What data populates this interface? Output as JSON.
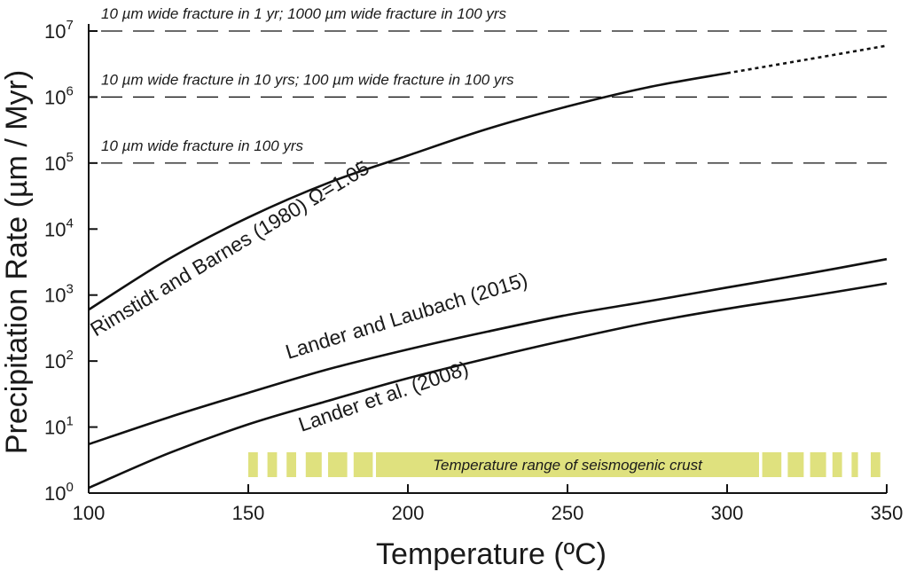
{
  "chart_data": {
    "type": "line",
    "title": "",
    "xlabel": "Temperature (ºC)",
    "ylabel": "Precipitation Rate (µm / Myr)",
    "xlim": [
      100,
      350
    ],
    "ylim_log10": [
      0,
      7
    ],
    "y_scale": "log",
    "x_ticks": [
      100,
      150,
      200,
      250,
      300,
      350
    ],
    "x_tick_labels": [
      "100",
      "150",
      "200",
      "250",
      "300",
      "350"
    ],
    "y_tick_exponents": [
      0,
      1,
      2,
      3,
      4,
      5,
      6,
      7
    ],
    "y_tick_base": "10",
    "y_tick_exponent_labels": [
      "0",
      "1",
      "2",
      "3",
      "4",
      "5",
      "6",
      "7"
    ],
    "reference_lines": [
      {
        "label": "10 µm wide fracture in 1 yr; 1000 µm wide fracture in 100 yrs",
        "y": 10000000
      },
      {
        "label": "10 µm wide fracture in 10 yrs; 100 µm wide fracture in 100 yrs",
        "y": 1000000
      },
      {
        "label": "10 µm wide fracture in 100 yrs",
        "y": 100000
      }
    ],
    "series": [
      {
        "name": "Rimstidt and Barnes (1980) Ω=1.05",
        "x": [
          100,
          125,
          150,
          175,
          200,
          225,
          250,
          275,
          300,
          325,
          350
        ],
        "y": [
          600,
          3500,
          15000,
          50000,
          130000,
          330000,
          720000,
          1400000,
          2300000,
          3700000,
          6000000
        ],
        "dotted_from_x": 300
      },
      {
        "name": "Lander and Laubach (2015)",
        "x": [
          100,
          125,
          150,
          175,
          200,
          225,
          250,
          275,
          300,
          325,
          350
        ],
        "y": [
          5.5,
          14,
          33,
          75,
          150,
          280,
          500,
          800,
          1300,
          2100,
          3500
        ]
      },
      {
        "name": "Lander et al. (2008)",
        "x": [
          100,
          125,
          150,
          175,
          200,
          225,
          250,
          275,
          300,
          325,
          350
        ],
        "y": [
          1.2,
          4,
          11,
          25,
          55,
          110,
          210,
          380,
          620,
          950,
          1500
        ]
      }
    ],
    "band": {
      "label": "Temperature range of seismogenic crust",
      "x_range": [
        150,
        350
      ],
      "color": "#dfe17e"
    },
    "line_color": "#111111"
  }
}
